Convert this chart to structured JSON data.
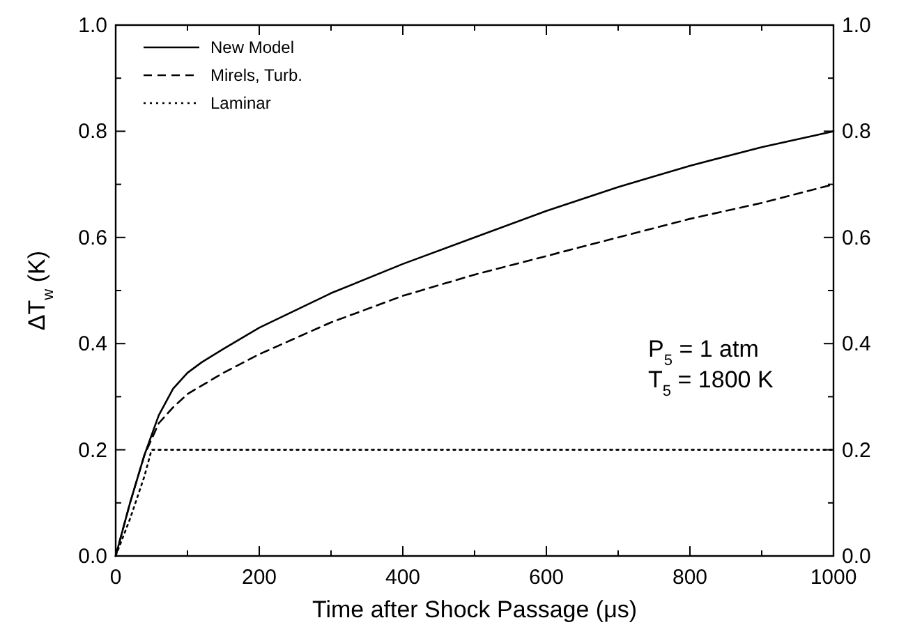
{
  "chart_data": {
    "type": "line",
    "xlabel": "Time after Shock Passage (μs)",
    "ylabel": "ΔT$_{w}$ (K)",
    "xlim": [
      0,
      1000
    ],
    "xticks": [
      0,
      {
        "value": 100,
        "label": null
      },
      200,
      {
        "value": 300,
        "label": null
      },
      400,
      {
        "value": 500,
        "label": null
      },
      600,
      {
        "value": 700,
        "label": null
      },
      800,
      {
        "value": 900,
        "label": null
      },
      1000
    ],
    "ylim": [
      0,
      1
    ],
    "yticks": [
      "0.0",
      {
        "value": 0.1,
        "label": null
      },
      0.2,
      {
        "value": 0.3,
        "label": null
      },
      0.4,
      {
        "value": 0.5,
        "label": null
      },
      0.6,
      {
        "value": 0.7,
        "label": null
      },
      0.8,
      {
        "value": 0.9,
        "label": null
      },
      "1.0"
    ],
    "y2lim": [
      0,
      1
    ],
    "y2ticks": [
      "0.0",
      {
        "value": 0.1,
        "label": null
      },
      0.2,
      {
        "value": 0.3,
        "label": null
      },
      0.4,
      {
        "value": 0.5,
        "label": null
      },
      0.6,
      {
        "value": 0.7,
        "label": null
      },
      0.8,
      {
        "value": 0.9,
        "label": null
      },
      "1.0"
    ],
    "legend": "top left",
    "grid": false,
    "annotations": [
      "P$_{5}$ = 1 atm",
      "T$_{5}$ = 1800 K"
    ],
    "series": [
      {
        "name": "New Model",
        "color": "#000000",
        "line_style": "solid",
        "x": [
          0,
          20,
          40,
          60,
          80,
          100,
          120,
          150,
          200,
          300,
          400,
          500,
          600,
          700,
          800,
          900,
          1000
        ],
        "values": [
          0,
          0.1,
          0.19,
          0.265,
          0.315,
          0.345,
          0.365,
          0.39,
          0.43,
          0.495,
          0.55,
          0.6,
          0.65,
          0.695,
          0.735,
          0.77,
          0.8
        ]
      },
      {
        "name": "Mirels, Turb.",
        "color": "#000000",
        "line_style": "dashed",
        "x": [
          0,
          20,
          40,
          60,
          80,
          100,
          150,
          200,
          300,
          400,
          500,
          600,
          700,
          800,
          900,
          1000
        ],
        "values": [
          0,
          0.1,
          0.19,
          0.25,
          0.28,
          0.305,
          0.345,
          0.38,
          0.44,
          0.49,
          0.53,
          0.565,
          0.6,
          0.635,
          0.665,
          0.7
        ]
      },
      {
        "name": "Laminar",
        "color": "#000000",
        "line_style": "dotted",
        "x": [
          0,
          20,
          40,
          50,
          1000
        ],
        "values": [
          0,
          0.07,
          0.15,
          0.2,
          0.2
        ]
      }
    ]
  }
}
